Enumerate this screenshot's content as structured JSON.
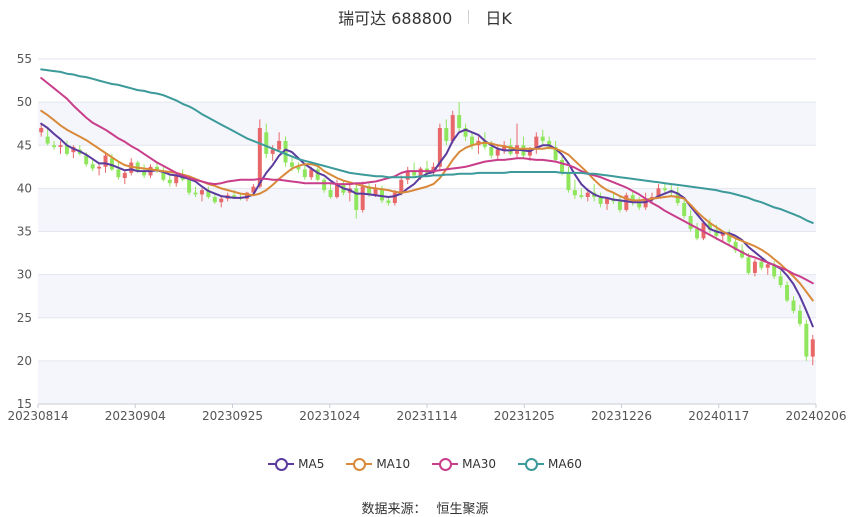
{
  "header": {
    "title": "瑞可达 688800",
    "period": "日K"
  },
  "footer": {
    "source_label": "数据来源：",
    "source_value": "恒生聚源"
  },
  "chart_data": {
    "type": "candlestick",
    "ylim": [
      15,
      55
    ],
    "yticks": [
      15,
      20,
      25,
      30,
      35,
      40,
      45,
      50,
      55
    ],
    "xticks": [
      "20230814",
      "20230904",
      "20230925",
      "20231024",
      "20231114",
      "20231205",
      "20231226",
      "20240117",
      "20240206"
    ],
    "up_color": "#e8686a",
    "down_color": "#8fe65c",
    "grid": true,
    "legend_position": "bottom",
    "candles": [
      [
        46.5,
        47.5,
        46.0,
        47.0
      ],
      [
        46.0,
        47.0,
        45.0,
        45.2
      ],
      [
        45.0,
        45.5,
        44.5,
        44.8
      ],
      [
        44.8,
        45.5,
        44.0,
        45.0
      ],
      [
        45.0,
        45.5,
        43.8,
        44.0
      ],
      [
        44.2,
        45.0,
        43.5,
        44.8
      ],
      [
        44.5,
        45.0,
        43.8,
        44.0
      ],
      [
        43.8,
        44.2,
        42.5,
        42.8
      ],
      [
        42.8,
        43.5,
        42.0,
        42.3
      ],
      [
        42.3,
        43.0,
        41.5,
        42.5
      ],
      [
        42.5,
        44.0,
        41.8,
        43.8
      ],
      [
        43.5,
        44.0,
        42.0,
        42.2
      ],
      [
        42.2,
        43.0,
        41.0,
        41.3
      ],
      [
        41.2,
        42.0,
        40.5,
        41.8
      ],
      [
        41.8,
        43.5,
        41.5,
        43.0
      ],
      [
        43.0,
        43.2,
        41.8,
        42.0
      ],
      [
        42.0,
        42.8,
        41.2,
        41.5
      ],
      [
        41.5,
        42.8,
        41.2,
        42.5
      ],
      [
        42.5,
        43.0,
        41.8,
        42.0
      ],
      [
        42.0,
        42.5,
        40.8,
        41.0
      ],
      [
        41.0,
        41.5,
        40.2,
        40.6
      ],
      [
        40.6,
        41.8,
        40.2,
        41.5
      ],
      [
        41.5,
        42.2,
        40.8,
        41.0
      ],
      [
        41.0,
        41.5,
        39.2,
        39.5
      ],
      [
        39.5,
        40.2,
        39.0,
        39.3
      ],
      [
        39.3,
        40.0,
        38.5,
        39.8
      ],
      [
        39.8,
        40.2,
        38.8,
        39.0
      ],
      [
        39.0,
        39.5,
        38.2,
        38.4
      ],
      [
        38.4,
        39.2,
        37.8,
        38.8
      ],
      [
        38.8,
        39.5,
        38.5,
        39.2
      ],
      [
        39.2,
        39.8,
        38.8,
        39.0
      ],
      [
        39.0,
        39.4,
        38.6,
        38.8
      ],
      [
        38.8,
        39.6,
        38.5,
        39.5
      ],
      [
        39.5,
        40.5,
        39.2,
        40.2
      ],
      [
        40.2,
        48.0,
        40.0,
        47.0
      ],
      [
        46.5,
        47.5,
        43.5,
        44.0
      ],
      [
        44.0,
        45.0,
        43.2,
        44.5
      ],
      [
        44.5,
        46.5,
        44.2,
        45.5
      ],
      [
        45.5,
        46.0,
        42.5,
        43.0
      ],
      [
        43.0,
        43.8,
        42.0,
        42.5
      ],
      [
        42.5,
        43.0,
        41.8,
        42.2
      ],
      [
        42.2,
        42.8,
        41.0,
        41.3
      ],
      [
        41.3,
        42.5,
        41.0,
        42.2
      ],
      [
        42.2,
        42.8,
        40.8,
        41.0
      ],
      [
        41.0,
        41.2,
        39.5,
        39.8
      ],
      [
        39.8,
        40.5,
        38.8,
        39.0
      ],
      [
        39.0,
        41.0,
        38.8,
        40.5
      ],
      [
        40.5,
        41.0,
        39.2,
        39.5
      ],
      [
        39.5,
        40.5,
        38.5,
        40.0
      ],
      [
        40.0,
        40.5,
        36.5,
        37.5
      ],
      [
        37.5,
        40.8,
        37.2,
        40.2
      ],
      [
        40.2,
        40.8,
        39.0,
        39.3
      ],
      [
        39.3,
        40.5,
        39.0,
        40.0
      ],
      [
        40.0,
        40.3,
        38.3,
        38.6
      ],
      [
        38.6,
        39.0,
        38.0,
        38.3
      ],
      [
        38.3,
        39.8,
        38.0,
        39.5
      ],
      [
        39.5,
        41.5,
        39.2,
        41.0
      ],
      [
        41.0,
        42.5,
        40.5,
        42.0
      ],
      [
        42.0,
        43.0,
        41.2,
        41.5
      ],
      [
        41.5,
        42.5,
        41.0,
        42.3
      ],
      [
        42.3,
        43.2,
        41.5,
        41.8
      ],
      [
        41.8,
        43.0,
        41.5,
        42.5
      ],
      [
        42.5,
        47.5,
        42.2,
        47.0
      ],
      [
        47.0,
        48.0,
        45.0,
        45.5
      ],
      [
        45.5,
        49.0,
        45.2,
        48.5
      ],
      [
        48.5,
        50.0,
        46.5,
        47.0
      ],
      [
        47.0,
        47.5,
        45.5,
        46.0
      ],
      [
        46.0,
        46.5,
        44.5,
        45.0
      ],
      [
        45.0,
        46.0,
        44.0,
        45.5
      ],
      [
        45.5,
        46.5,
        44.5,
        44.8
      ],
      [
        44.8,
        45.5,
        43.5,
        43.8
      ],
      [
        43.8,
        45.0,
        43.2,
        44.5
      ],
      [
        44.5,
        45.5,
        44.0,
        45.0
      ],
      [
        45.0,
        45.8,
        43.8,
        44.0
      ],
      [
        44.0,
        47.5,
        43.5,
        45.0
      ],
      [
        45.0,
        46.0,
        43.5,
        43.8
      ],
      [
        43.8,
        44.8,
        43.2,
        44.5
      ],
      [
        44.5,
        46.5,
        44.0,
        46.0
      ],
      [
        46.0,
        46.8,
        45.0,
        45.5
      ],
      [
        45.5,
        46.0,
        44.5,
        44.8
      ],
      [
        44.8,
        45.5,
        43.0,
        43.3
      ],
      [
        43.3,
        44.0,
        41.5,
        41.8
      ],
      [
        41.8,
        42.5,
        39.5,
        39.8
      ],
      [
        39.8,
        41.0,
        38.8,
        39.2
      ],
      [
        39.2,
        40.0,
        38.8,
        39.0
      ],
      [
        39.0,
        40.0,
        38.5,
        39.5
      ],
      [
        39.5,
        40.5,
        38.5,
        39.0
      ],
      [
        39.0,
        39.5,
        37.8,
        38.2
      ],
      [
        38.2,
        39.0,
        37.5,
        38.8
      ],
      [
        38.8,
        39.5,
        38.2,
        38.5
      ],
      [
        38.5,
        39.2,
        37.2,
        37.5
      ],
      [
        37.5,
        39.5,
        37.3,
        39.2
      ],
      [
        39.2,
        39.8,
        38.0,
        38.3
      ],
      [
        38.3,
        39.0,
        37.5,
        37.8
      ],
      [
        37.8,
        39.5,
        37.5,
        38.8
      ],
      [
        38.8,
        39.5,
        38.3,
        39.0
      ],
      [
        39.0,
        40.5,
        38.8,
        40.0
      ],
      [
        40.0,
        40.6,
        39.4,
        39.8
      ],
      [
        39.8,
        40.5,
        39.0,
        39.5
      ],
      [
        39.5,
        40.2,
        38.0,
        38.3
      ],
      [
        38.3,
        38.8,
        36.5,
        36.8
      ],
      [
        36.8,
        37.5,
        35.0,
        35.3
      ],
      [
        35.3,
        36.0,
        34.0,
        34.2
      ],
      [
        34.2,
        36.2,
        34.0,
        36.0
      ],
      [
        36.0,
        36.5,
        34.8,
        35.2
      ],
      [
        35.2,
        35.8,
        34.0,
        34.5
      ],
      [
        34.5,
        35.0,
        33.8,
        34.8
      ],
      [
        34.8,
        35.2,
        33.5,
        33.8
      ],
      [
        33.8,
        34.2,
        32.5,
        32.8
      ],
      [
        32.8,
        33.5,
        31.8,
        32.0
      ],
      [
        32.0,
        32.5,
        30.0,
        30.2
      ],
      [
        30.2,
        31.8,
        29.8,
        31.5
      ],
      [
        31.5,
        32.0,
        30.5,
        30.8
      ],
      [
        30.8,
        31.5,
        30.0,
        31.2
      ],
      [
        31.2,
        31.6,
        29.5,
        29.8
      ],
      [
        29.8,
        30.5,
        28.5,
        28.8
      ],
      [
        28.8,
        29.2,
        26.8,
        27.0
      ],
      [
        27.0,
        27.5,
        25.5,
        25.8
      ],
      [
        25.8,
        26.5,
        24.0,
        24.3
      ],
      [
        24.3,
        24.8,
        20.0,
        20.5
      ],
      [
        20.5,
        23.0,
        19.5,
        22.5
      ]
    ],
    "series": [
      {
        "name": "MA5",
        "color": "#5b3b9e",
        "values": [
          47.5,
          47.0,
          46.3,
          45.7,
          45.0,
          44.6,
          44.3,
          43.9,
          43.4,
          42.9,
          42.9,
          42.7,
          42.4,
          42.1,
          42.2,
          42.0,
          42.0,
          42.0,
          42.1,
          41.9,
          41.6,
          41.5,
          41.3,
          41.1,
          40.8,
          40.2,
          39.7,
          39.4,
          39.1,
          39.0,
          38.9,
          38.9,
          39.0,
          39.3,
          40.6,
          41.8,
          42.7,
          43.8,
          44.5,
          44.2,
          43.5,
          42.8,
          42.3,
          41.8,
          41.5,
          40.9,
          40.4,
          40.0,
          39.8,
          39.4,
          39.4,
          39.3,
          39.2,
          39.1,
          39.0,
          39.1,
          39.4,
          40.0,
          40.5,
          41.3,
          41.7,
          41.9,
          43.0,
          44.0,
          45.5,
          46.5,
          46.8,
          46.5,
          46.2,
          45.5,
          45.0,
          44.6,
          44.4,
          44.4,
          44.5,
          44.4,
          44.3,
          44.7,
          45.0,
          45.0,
          44.6,
          43.9,
          42.9,
          41.6,
          40.5,
          39.8,
          39.3,
          39.0,
          38.9,
          38.7,
          38.6,
          38.5,
          38.4,
          38.4,
          38.4,
          38.7,
          39.1,
          39.4,
          39.7,
          39.4,
          38.9,
          37.9,
          37.0,
          36.1,
          35.3,
          35.0,
          34.8,
          34.8,
          34.5,
          34.0,
          33.2,
          32.6,
          32.0,
          31.4,
          31.1,
          30.7,
          29.9,
          28.9,
          27.5,
          25.8,
          24.0
        ]
      },
      {
        "name": "MA10",
        "color": "#d9893a",
        "values": [
          49.0,
          48.5,
          47.9,
          47.3,
          46.8,
          46.4,
          46.0,
          45.6,
          45.1,
          44.6,
          44.1,
          43.6,
          43.1,
          42.7,
          42.5,
          42.4,
          42.3,
          42.2,
          42.1,
          42.0,
          41.9,
          41.8,
          41.6,
          41.4,
          41.1,
          40.8,
          40.5,
          40.3,
          40.0,
          39.8,
          39.6,
          39.4,
          39.3,
          39.2,
          39.4,
          39.8,
          40.4,
          41.1,
          41.7,
          42.3,
          42.6,
          42.8,
          42.8,
          42.6,
          42.0,
          41.6,
          41.2,
          40.9,
          40.7,
          40.5,
          40.3,
          40.1,
          40.0,
          39.9,
          39.8,
          39.6,
          39.5,
          39.6,
          39.8,
          40.0,
          40.2,
          40.5,
          41.2,
          42.2,
          43.3,
          44.2,
          44.7,
          45.0,
          45.2,
          45.3,
          45.2,
          45.0,
          44.9,
          44.7,
          44.6,
          44.6,
          44.6,
          44.6,
          44.6,
          44.7,
          44.6,
          44.3,
          43.9,
          43.2,
          42.5,
          41.8,
          41.0,
          40.3,
          39.8,
          39.5,
          39.1,
          38.8,
          38.6,
          38.6,
          38.7,
          38.8,
          38.9,
          39.0,
          39.1,
          39.0,
          38.8,
          38.1,
          37.3,
          36.6,
          36.0,
          35.5,
          35.0,
          34.6,
          34.2,
          33.9,
          33.6,
          33.3,
          32.9,
          32.4,
          31.8,
          31.2,
          30.5,
          29.8,
          29.0,
          28.0,
          27.0
        ]
      },
      {
        "name": "MA30",
        "color": "#c93e8b",
        "values": [
          52.8,
          52.2,
          51.6,
          51.0,
          50.4,
          49.6,
          48.9,
          48.2,
          47.6,
          47.2,
          46.8,
          46.3,
          45.8,
          45.4,
          44.9,
          44.5,
          44.0,
          43.5,
          43.0,
          42.6,
          42.2,
          41.8,
          41.5,
          41.2,
          41.0,
          40.8,
          40.6,
          40.5,
          40.6,
          40.8,
          40.9,
          41.0,
          41.0,
          41.0,
          41.1,
          41.1,
          41.0,
          41.0,
          40.9,
          40.8,
          40.7,
          40.6,
          40.6,
          40.6,
          40.6,
          40.6,
          40.5,
          40.5,
          40.5,
          40.6,
          40.6,
          40.7,
          40.8,
          41.0,
          41.2,
          41.4,
          41.8,
          42.0,
          42.0,
          42.0,
          42.0,
          42.0,
          42.1,
          42.2,
          42.3,
          42.4,
          42.5,
          42.7,
          42.9,
          43.1,
          43.2,
          43.3,
          43.3,
          43.4,
          43.5,
          43.5,
          43.4,
          43.3,
          43.3,
          43.2,
          43.1,
          42.9,
          42.7,
          42.4,
          42.0,
          41.7,
          41.5,
          41.3,
          41.0,
          40.7,
          40.4,
          40.1,
          39.7,
          39.3,
          38.8,
          38.3,
          37.9,
          37.4,
          37.0,
          36.6,
          36.2,
          35.8,
          35.4,
          35.0,
          34.6,
          34.2,
          33.8,
          33.4,
          33.0,
          32.6,
          32.2,
          32.0,
          31.7,
          31.4,
          31.1,
          30.8,
          30.5,
          30.1,
          29.8,
          29.4,
          29.0
        ]
      },
      {
        "name": "MA60",
        "color": "#3d9a9a",
        "values": [
          53.8,
          53.7,
          53.6,
          53.5,
          53.3,
          53.2,
          53.0,
          52.9,
          52.7,
          52.5,
          52.3,
          52.1,
          52.0,
          51.8,
          51.6,
          51.4,
          51.3,
          51.1,
          51.0,
          50.8,
          50.5,
          50.2,
          49.8,
          49.5,
          49.1,
          48.6,
          48.2,
          47.8,
          47.4,
          47.0,
          46.6,
          46.2,
          45.8,
          45.5,
          45.2,
          44.9,
          44.6,
          44.3,
          44.0,
          43.7,
          43.4,
          43.2,
          43.0,
          42.8,
          42.6,
          42.4,
          42.2,
          42.0,
          41.8,
          41.7,
          41.6,
          41.5,
          41.4,
          41.4,
          41.3,
          41.3,
          41.3,
          41.3,
          41.3,
          41.4,
          41.4,
          41.5,
          41.5,
          41.6,
          41.6,
          41.7,
          41.7,
          41.7,
          41.8,
          41.8,
          41.8,
          41.8,
          41.8,
          41.9,
          41.9,
          41.9,
          41.9,
          41.9,
          41.9,
          41.9,
          41.9,
          41.8,
          41.8,
          41.8,
          41.8,
          41.7,
          41.7,
          41.6,
          41.5,
          41.4,
          41.3,
          41.2,
          41.1,
          41.0,
          40.9,
          40.8,
          40.7,
          40.6,
          40.5,
          40.4,
          40.3,
          40.2,
          40.1,
          40.0,
          39.9,
          39.8,
          39.6,
          39.5,
          39.3,
          39.1,
          38.9,
          38.6,
          38.4,
          38.1,
          37.8,
          37.6,
          37.3,
          37.0,
          36.7,
          36.3,
          36.0
        ]
      }
    ]
  }
}
